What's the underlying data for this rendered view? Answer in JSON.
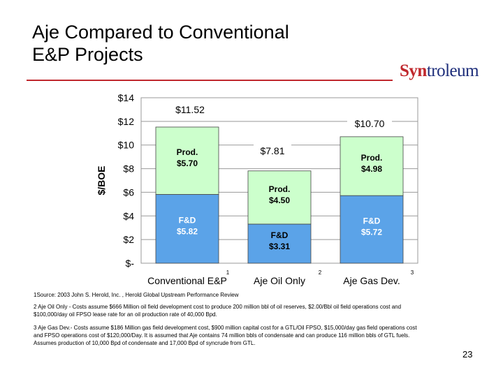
{
  "slide": {
    "title_line1": "Aje Compared to Conventional",
    "title_line2": "E&P Projects",
    "logo_part1": "Syn",
    "logo_part2": "troleum",
    "page_number": "23"
  },
  "chart_data": {
    "type": "bar",
    "stacked": true,
    "categories": [
      "Conventional E&P",
      "Aje Oil Only",
      "Aje Gas Dev."
    ],
    "category_footnotes": [
      "1",
      "2",
      "3"
    ],
    "ylabel": "$/BOE",
    "ylim": [
      0,
      14
    ],
    "y_ticks": [
      0,
      2,
      4,
      6,
      8,
      10,
      12,
      14
    ],
    "y_tick_labels": [
      "$-",
      "$2",
      "$4",
      "$6",
      "$8",
      "$10",
      "$12",
      "$14"
    ],
    "grid": true,
    "totals": [
      11.52,
      7.81,
      10.7
    ],
    "total_labels": [
      "$11.52",
      "$7.81",
      "$10.70"
    ],
    "series": [
      {
        "name": "F&D",
        "values": [
          5.82,
          3.31,
          5.72
        ],
        "labels": [
          "$5.82",
          "$3.31",
          "$5.72"
        ],
        "color": "#5ba3e8"
      },
      {
        "name": "Prod.",
        "values": [
          5.7,
          4.5,
          4.98
        ],
        "labels": [
          "$5.70",
          "$4.50",
          "$4.98"
        ],
        "color": "#ccffcc"
      }
    ]
  },
  "notes": {
    "note1": "1Source: 2003 John S. Herold, Inc. , Herold Global Upstream Performance Review",
    "note2": "2 Aje Oil Only - Costs assume $666 Million oil field development cost to produce 200 million bbl of oil reserves, $2.00/Bbl oil field operations cost and $100,000/day oil FPSO lease rate for an oil production rate of 40,000 Bpd.",
    "note3": "3 Aje Gas Dev.- Costs assume $186 Million gas field development cost, $900 million capital cost for a GTL/Oil FPSO, $15,000/day gas field operations cost and FPSO operations cost of $120,000/Day. It is assumed that Aje contains 74 million bbls of condensate and can produce 116 million bbls of GTL fuels. Assumes production of 10,000 Bpd of condensate and 17,000 Bpd of syncrude from GTL."
  }
}
